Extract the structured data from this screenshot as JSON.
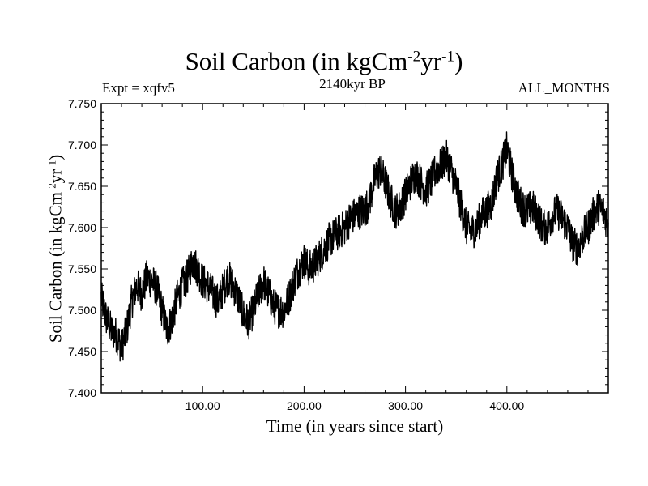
{
  "chart_data": {
    "type": "line",
    "title": {
      "main": "Soil Carbon (in kgCm",
      "sup1": "-2",
      "mid": "yr",
      "sup2": "-1",
      "end": ")"
    },
    "subtitle_left": "Expt = xqfv5",
    "subtitle_center": "2140kyr BP",
    "subtitle_right": "ALL_MONTHS",
    "xlabel": "Time (in years since start)",
    "ylabel": {
      "main": "Soil Carbon (in kgCm",
      "sup1": "-2",
      "mid": "yr",
      "sup2": "-1",
      "end": ")"
    },
    "xlim": [
      0,
      500
    ],
    "ylim": [
      7.4,
      7.75
    ],
    "xticks": [
      100,
      200,
      300,
      400
    ],
    "xtick_labels": [
      "100.00",
      "200.00",
      "300.00",
      "400.00"
    ],
    "yticks": [
      7.4,
      7.45,
      7.5,
      7.55,
      7.6,
      7.65,
      7.7,
      7.75
    ],
    "ytick_labels": [
      "7.400",
      "7.450",
      "7.500",
      "7.550",
      "7.600",
      "7.650",
      "7.700",
      "7.750"
    ],
    "series": [
      {
        "name": "Soil Carbon",
        "color": "#000000",
        "x": [
          0,
          5,
          10,
          15,
          20,
          25,
          30,
          35,
          40,
          45,
          50,
          55,
          60,
          65,
          70,
          75,
          80,
          85,
          90,
          95,
          100,
          105,
          110,
          115,
          120,
          125,
          130,
          135,
          140,
          145,
          150,
          155,
          160,
          165,
          170,
          175,
          180,
          185,
          190,
          195,
          200,
          205,
          210,
          215,
          220,
          225,
          230,
          235,
          240,
          245,
          250,
          255,
          260,
          265,
          270,
          275,
          280,
          285,
          290,
          295,
          300,
          305,
          310,
          315,
          320,
          325,
          330,
          335,
          340,
          345,
          350,
          355,
          360,
          365,
          370,
          375,
          380,
          385,
          390,
          395,
          400,
          405,
          410,
          415,
          420,
          425,
          430,
          435,
          440,
          445,
          450,
          455,
          460,
          465,
          470,
          475,
          480,
          485,
          490,
          495,
          500
        ],
        "y": [
          7.515,
          7.49,
          7.475,
          7.47,
          7.455,
          7.475,
          7.51,
          7.53,
          7.52,
          7.54,
          7.535,
          7.525,
          7.5,
          7.475,
          7.49,
          7.515,
          7.53,
          7.54,
          7.56,
          7.55,
          7.535,
          7.53,
          7.52,
          7.51,
          7.525,
          7.54,
          7.53,
          7.515,
          7.495,
          7.485,
          7.5,
          7.52,
          7.535,
          7.52,
          7.505,
          7.5,
          7.5,
          7.515,
          7.535,
          7.55,
          7.56,
          7.55,
          7.555,
          7.565,
          7.575,
          7.585,
          7.59,
          7.595,
          7.6,
          7.61,
          7.615,
          7.62,
          7.62,
          7.635,
          7.66,
          7.67,
          7.655,
          7.635,
          7.62,
          7.625,
          7.64,
          7.655,
          7.665,
          7.655,
          7.645,
          7.655,
          7.67,
          7.675,
          7.685,
          7.67,
          7.65,
          7.625,
          7.6,
          7.595,
          7.6,
          7.615,
          7.62,
          7.63,
          7.66,
          7.675,
          7.695,
          7.665,
          7.64,
          7.625,
          7.62,
          7.625,
          7.615,
          7.6,
          7.6,
          7.615,
          7.62,
          7.61,
          7.6,
          7.58,
          7.575,
          7.59,
          7.6,
          7.615,
          7.625,
          7.62,
          7.605
        ],
        "noise_amplitude": 0.022
      }
    ]
  }
}
